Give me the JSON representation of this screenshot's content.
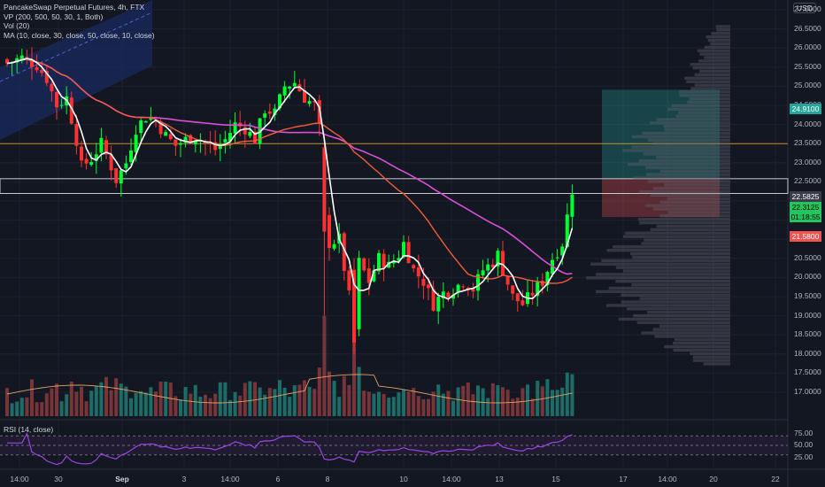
{
  "legend": {
    "symbol": "PancakeSwap Perpetual Futures, 4h, FTX",
    "vp": "VP (200, 500, 50, 30, 1, Both)",
    "vol": "Vol (20)",
    "ma": "MA (10, close, 30, close, 50, close, 10, close)",
    "rsi": "RSI (14, close)"
  },
  "currency": "USD",
  "colors": {
    "background": "#131722",
    "up": "#00ff2e",
    "down": "#ff3030",
    "ma_fast": "#ffffff",
    "ma_mid": "#f25c3b",
    "ma_slow": "#d94fd6",
    "vol_ma": "#e0a060",
    "horizontal_line": "#f5a623",
    "rsi": "#9c45e6",
    "zone_profit": "#26a69a",
    "zone_loss": "#ef5350"
  },
  "price_axis": {
    "ticks": [
      "27.0000",
      "26.5000",
      "26.0000",
      "25.5000",
      "25.0000",
      "24.5000",
      "24.0000",
      "23.5000",
      "23.0000",
      "22.5000",
      "22.0000",
      "21.5000",
      "21.0000",
      "20.5000",
      "20.0000",
      "19.5000",
      "19.0000",
      "18.5000",
      "18.0000",
      "17.5000",
      "17.0000"
    ],
    "labels": {
      "target": "24.9100",
      "upper": "22.5825",
      "last": "22.3125",
      "countdown": "01:18:55",
      "stop": "21.5800"
    }
  },
  "rsi_axis": {
    "ticks": [
      "75.00",
      "50.00",
      "25.00"
    ]
  },
  "time_axis": {
    "ticks": [
      {
        "label": "14:00",
        "bold": false
      },
      {
        "label": "30",
        "bold": false
      },
      {
        "label": "Sep",
        "bold": true
      },
      {
        "label": "3",
        "bold": false
      },
      {
        "label": "14:00",
        "bold": false
      },
      {
        "label": "6",
        "bold": false
      },
      {
        "label": "8",
        "bold": false
      },
      {
        "label": "10",
        "bold": false
      },
      {
        "label": "14:00",
        "bold": false
      },
      {
        "label": "13",
        "bold": false
      },
      {
        "label": "15",
        "bold": false
      },
      {
        "label": "17",
        "bold": false
      },
      {
        "label": "14:00",
        "bold": false
      },
      {
        "label": "20",
        "bold": false
      },
      {
        "label": "22",
        "bold": false
      }
    ]
  },
  "chart_data": {
    "type": "candlestick",
    "title": "PancakeSwap Perpetual Futures, 4h, FTX",
    "ylim": [
      16.8,
      27.2
    ],
    "levels": {
      "horizontal_line": 23.5,
      "target": 24.91,
      "entry": 22.5825,
      "last": 22.3125,
      "stop": 21.58
    },
    "anchors": [
      [
        0,
        25.6
      ],
      [
        3,
        25.75
      ],
      [
        6,
        25.55
      ],
      [
        8,
        25.2
      ],
      [
        10,
        24.5
      ],
      [
        12,
        24.7
      ],
      [
        14,
        23.6
      ],
      [
        15,
        22.9
      ],
      [
        17,
        23.1
      ],
      [
        19,
        23.5
      ],
      [
        21,
        22.9
      ],
      [
        22,
        22.55
      ],
      [
        24,
        23.0
      ],
      [
        26,
        23.9
      ],
      [
        28,
        24.2
      ],
      [
        30,
        24.1
      ],
      [
        32,
        23.7
      ],
      [
        34,
        23.45
      ],
      [
        36,
        23.6
      ],
      [
        38,
        23.7
      ],
      [
        40,
        23.5
      ],
      [
        42,
        23.35
      ],
      [
        44,
        23.6
      ],
      [
        46,
        24.0
      ],
      [
        48,
        23.9
      ],
      [
        50,
        23.6
      ],
      [
        52,
        24.4
      ],
      [
        54,
        24.3
      ],
      [
        56,
        25.0
      ],
      [
        58,
        25.1
      ],
      [
        60,
        24.7
      ],
      [
        62,
        24.5
      ],
      [
        63,
        23.9
      ],
      [
        64,
        21.5
      ],
      [
        65,
        20.9
      ],
      [
        67,
        21.0
      ],
      [
        69,
        19.5
      ],
      [
        70,
        18.6
      ],
      [
        71,
        20.4
      ],
      [
        73,
        19.9
      ],
      [
        75,
        20.5
      ],
      [
        77,
        20.3
      ],
      [
        79,
        20.6
      ],
      [
        80,
        20.9
      ],
      [
        82,
        20.2
      ],
      [
        84,
        19.9
      ],
      [
        86,
        19.3
      ],
      [
        88,
        19.6
      ],
      [
        90,
        19.7
      ],
      [
        92,
        19.9
      ],
      [
        94,
        19.7
      ],
      [
        96,
        20.2
      ],
      [
        98,
        20.4
      ],
      [
        99,
        20.6
      ],
      [
        100,
        20.2
      ],
      [
        102,
        19.5
      ],
      [
        104,
        19.3
      ],
      [
        106,
        19.6
      ],
      [
        108,
        19.9
      ],
      [
        110,
        20.5
      ],
      [
        112,
        20.9
      ],
      [
        113,
        21.6
      ],
      [
        114,
        22.3
      ]
    ],
    "volume_range": [
      0,
      350
    ]
  }
}
